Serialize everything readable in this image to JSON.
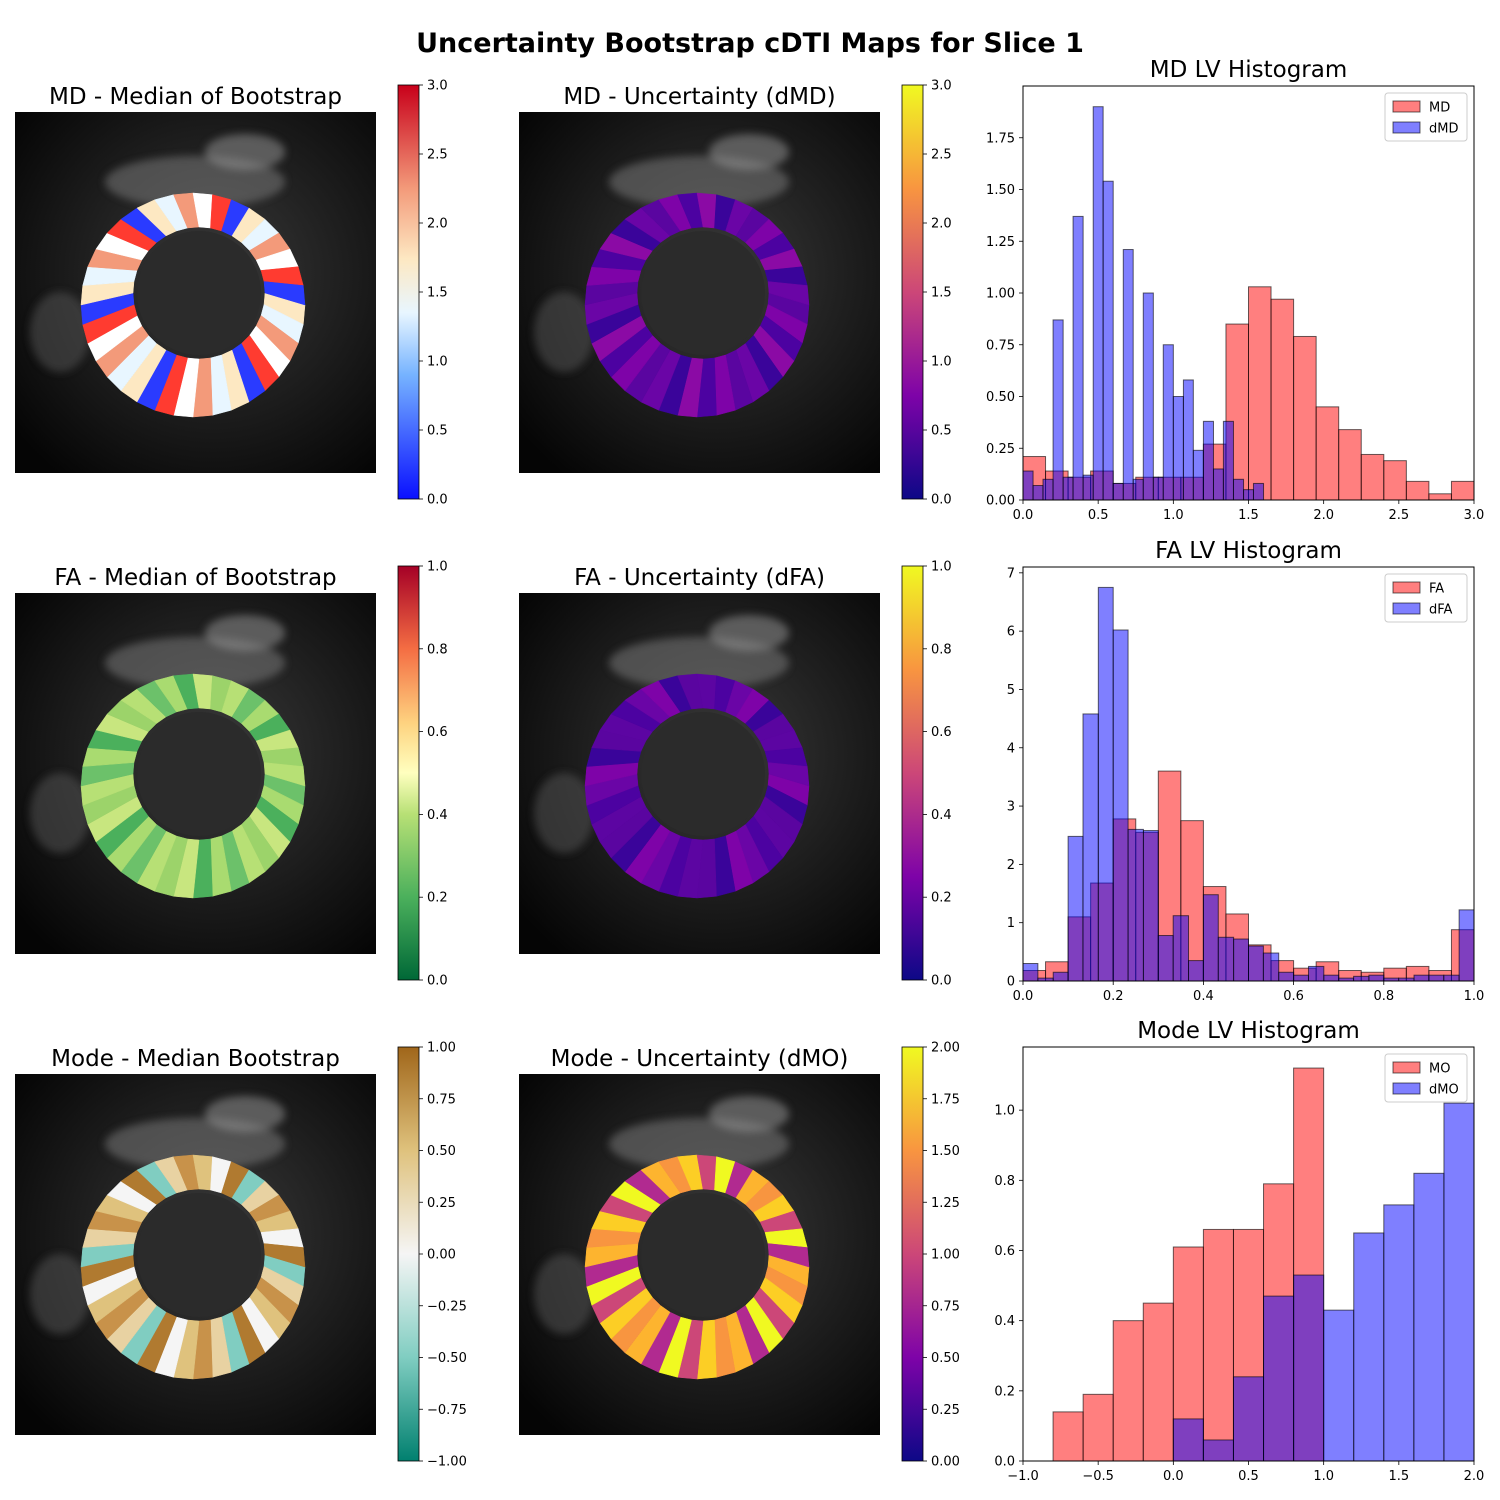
{
  "suptitle": "Uncertainty Bootstrap cDTI Maps for Slice 1",
  "maps": [
    {
      "title": "MD - Median of Bootstrap",
      "cmap": "bwr",
      "colorbar_ticks": [
        "0.0",
        "0.5",
        "1.0",
        "1.5",
        "2.0",
        "2.5",
        "3.0"
      ]
    },
    {
      "title": "MD - Uncertainty (dMD)",
      "cmap": "plasma",
      "colorbar_ticks": [
        "0.0",
        "0.5",
        "1.0",
        "1.5",
        "2.0",
        "2.5",
        "3.0"
      ]
    },
    {
      "title": "FA - Median of Bootstrap",
      "cmap": "RdYlGn_r",
      "colorbar_ticks": [
        "0.0",
        "0.2",
        "0.4",
        "0.6",
        "0.8",
        "1.0"
      ]
    },
    {
      "title": "FA - Uncertainty (dFA)",
      "cmap": "plasma",
      "colorbar_ticks": [
        "0.0",
        "0.2",
        "0.4",
        "0.6",
        "0.8",
        "1.0"
      ]
    },
    {
      "title": "Mode - Median Bootstrap",
      "cmap": "BrBG_r",
      "colorbar_ticks": [
        "−1.00",
        "−0.75",
        "−0.50",
        "−0.25",
        "0.00",
        "0.25",
        "0.50",
        "0.75",
        "1.00"
      ]
    },
    {
      "title": "Mode - Uncertainty (dMO)",
      "cmap": "plasma",
      "colorbar_ticks": [
        "0.00",
        "0.25",
        "0.50",
        "0.75",
        "1.00",
        "1.25",
        "1.50",
        "1.75",
        "2.00"
      ]
    }
  ],
  "colors": {
    "series_a": "#ff0000",
    "series_b": "#0000ff",
    "edge": "#000000"
  },
  "chart_data": [
    {
      "type": "bar",
      "title": "MD LV Histogram",
      "xlim": [
        0,
        3
      ],
      "ylim": [
        0,
        2.0
      ],
      "xticks": [
        0.0,
        0.5,
        1.0,
        1.5,
        2.0,
        2.5,
        3.0
      ],
      "xtick_labels": [
        "0.0",
        "0.5",
        "1.0",
        "1.5",
        "2.0",
        "2.5",
        "3.0"
      ],
      "yticks": [
        0,
        0.25,
        0.5,
        0.75,
        1.0,
        1.25,
        1.5,
        1.75
      ],
      "ytick_labels": [
        "0.00",
        "0.25",
        "0.50",
        "0.75",
        "1.00",
        "1.25",
        "1.50",
        "1.75"
      ],
      "legend_position": "top-right",
      "series": [
        {
          "name": "MD",
          "color": "#ff0000",
          "bin_edges": [
            0,
            0.15,
            0.3,
            0.45,
            0.6,
            0.75,
            0.9,
            1.05,
            1.2,
            1.35,
            1.5,
            1.65,
            1.8,
            1.95,
            2.1,
            2.25,
            2.4,
            2.55,
            2.7,
            2.85,
            3.0
          ],
          "values": [
            0.21,
            0.14,
            0.11,
            0.14,
            0.08,
            0.11,
            0.11,
            0.11,
            0.27,
            0.85,
            1.03,
            0.97,
            0.79,
            0.45,
            0.34,
            0.22,
            0.19,
            0.09,
            0.03,
            0.09
          ]
        },
        {
          "name": "dMD",
          "color": "#0000ff",
          "bin_edges": [
            0,
            0.067,
            0.133,
            0.2,
            0.267,
            0.333,
            0.4,
            0.467,
            0.533,
            0.6,
            0.667,
            0.733,
            0.8,
            0.867,
            0.933,
            1.0,
            1.067,
            1.133,
            1.2,
            1.267,
            1.333,
            1.4,
            1.467,
            1.533,
            1.6
          ],
          "values": [
            0.14,
            0.07,
            0.1,
            0.87,
            0.11,
            1.37,
            0.12,
            1.9,
            1.54,
            0.08,
            1.21,
            0.1,
            1.0,
            0.11,
            0.75,
            0.5,
            0.58,
            0.24,
            0.38,
            0.15,
            0.38,
            0.1,
            0.05,
            0.08
          ]
        }
      ]
    },
    {
      "type": "bar",
      "title": "FA LV Histogram",
      "xlim": [
        0,
        1
      ],
      "ylim": [
        0,
        7.1
      ],
      "xticks": [
        0.0,
        0.2,
        0.4,
        0.6,
        0.8,
        1.0
      ],
      "xtick_labels": [
        "0.0",
        "0.2",
        "0.4",
        "0.6",
        "0.8",
        "1.0"
      ],
      "yticks": [
        0,
        1,
        2,
        3,
        4,
        5,
        6,
        7
      ],
      "ytick_labels": [
        "0",
        "1",
        "2",
        "3",
        "4",
        "5",
        "6",
        "7"
      ],
      "legend_position": "top-right",
      "series": [
        {
          "name": "FA",
          "color": "#ff0000",
          "bin_edges": [
            0,
            0.05,
            0.1,
            0.15,
            0.2,
            0.25,
            0.3,
            0.35,
            0.4,
            0.45,
            0.5,
            0.55,
            0.6,
            0.65,
            0.7,
            0.75,
            0.8,
            0.85,
            0.9,
            0.95,
            1.0
          ],
          "values": [
            0.18,
            0.33,
            1.1,
            1.68,
            2.78,
            2.55,
            3.6,
            2.75,
            1.62,
            1.15,
            0.62,
            0.35,
            0.22,
            0.33,
            0.18,
            0.15,
            0.22,
            0.25,
            0.18,
            0.88
          ]
        },
        {
          "name": "dFA",
          "color": "#0000ff",
          "bin_edges": [
            0,
            0.033,
            0.067,
            0.1,
            0.133,
            0.167,
            0.2,
            0.233,
            0.267,
            0.3,
            0.333,
            0.367,
            0.4,
            0.433,
            0.467,
            0.5,
            0.533,
            0.567,
            0.6,
            0.633,
            0.667,
            0.7,
            0.733,
            0.767,
            0.8,
            0.833,
            0.867,
            0.9,
            0.933,
            0.967,
            1.0
          ],
          "values": [
            0.3,
            0.05,
            0.15,
            2.48,
            4.58,
            6.75,
            6.02,
            2.6,
            2.58,
            0.78,
            1.12,
            0.35,
            1.48,
            0.75,
            0.72,
            0.6,
            0.48,
            0.15,
            0.1,
            0.25,
            0.1,
            0.05,
            0.08,
            0.1,
            0.05,
            0.05,
            0.1,
            0.1,
            0.1,
            1.22
          ]
        }
      ]
    },
    {
      "type": "bar",
      "title": "Mode LV Histogram",
      "xlim": [
        -1.0,
        2.0
      ],
      "ylim": [
        0,
        1.18
      ],
      "xticks": [
        -1.0,
        -0.5,
        0.0,
        0.5,
        1.0,
        1.5,
        2.0
      ],
      "xtick_labels": [
        "−1.0",
        "−0.5",
        "0.0",
        "0.5",
        "1.0",
        "1.5",
        "2.0"
      ],
      "yticks": [
        0,
        0.2,
        0.4,
        0.6,
        0.8,
        1.0
      ],
      "ytick_labels": [
        "0.0",
        "0.2",
        "0.4",
        "0.6",
        "0.8",
        "1.0"
      ],
      "legend_position": "top-right",
      "series": [
        {
          "name": "MO",
          "color": "#ff0000",
          "bin_edges": [
            -0.8,
            -0.6,
            -0.4,
            -0.2,
            0.0,
            0.2,
            0.4,
            0.6,
            0.8,
            1.0
          ],
          "values": [
            0.14,
            0.19,
            0.4,
            0.45,
            0.61,
            0.66,
            0.66,
            0.79,
            1.12
          ]
        },
        {
          "name": "dMO",
          "color": "#0000ff",
          "bin_edges": [
            0.0,
            0.2,
            0.4,
            0.6,
            0.8,
            1.0,
            1.2,
            1.4,
            1.6,
            1.8,
            2.0
          ],
          "values": [
            0.12,
            0.06,
            0.24,
            0.47,
            0.53,
            0.43,
            0.65,
            0.73,
            0.82,
            1.02
          ]
        }
      ]
    }
  ]
}
